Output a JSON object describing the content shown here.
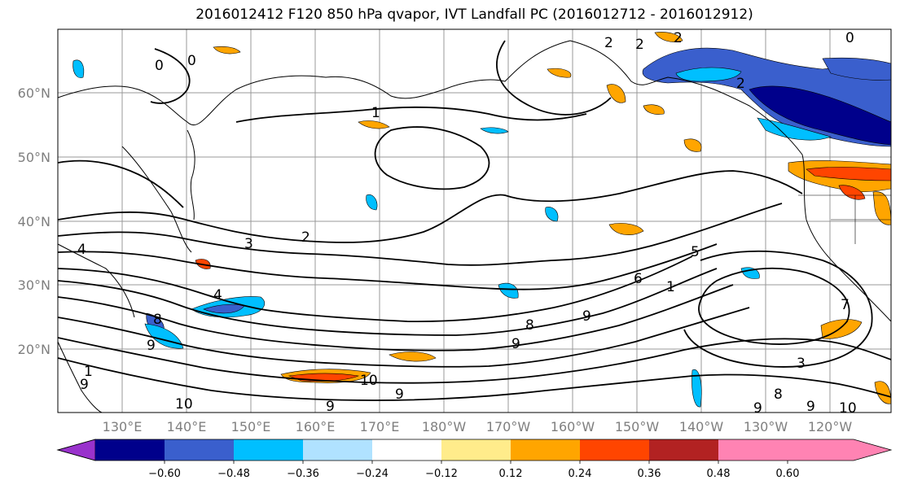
{
  "title": "2016012412 F120 850 hPa qvapor, IVT Landfall PC (2016012712 - 2016012912)",
  "map": {
    "lat_labels": [
      "60°N",
      "50°N",
      "40°N",
      "30°N",
      "20°N"
    ],
    "lon_labels": [
      "130°E",
      "140°E",
      "150°E",
      "160°E",
      "170°E",
      "180°W",
      "170°W",
      "160°W",
      "150°W",
      "140°W",
      "130°W",
      "120°W"
    ],
    "contour_labels": [
      "0",
      "0",
      "1",
      "2",
      "2",
      "2",
      "2",
      "3",
      "2",
      "4",
      "5",
      "4",
      "8",
      "8",
      "9",
      "9",
      "9",
      "9",
      "10",
      "10",
      "9",
      "9",
      "9",
      "8",
      "9",
      "10",
      "7",
      "6",
      "3",
      "1",
      "1",
      "0"
    ]
  },
  "colorbar": {
    "tick_labels": [
      "−0.60",
      "−0.48",
      "−0.36",
      "−0.24",
      "−0.12",
      "0.12",
      "0.24",
      "0.36",
      "0.48",
      "0.60"
    ],
    "colors": [
      "#9932cc",
      "#00008b",
      "#3a5fcd",
      "#00bfff",
      "#b0e2ff",
      "#ffffff",
      "#ffec8b",
      "#ffa500",
      "#ff4500",
      "#b22222",
      "#ff83b3"
    ]
  }
}
